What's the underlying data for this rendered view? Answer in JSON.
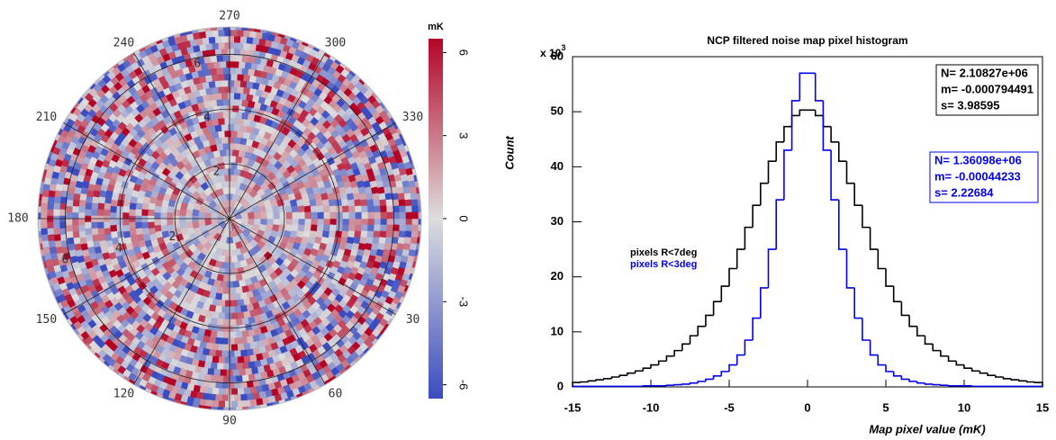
{
  "chart_data": [
    {
      "type": "polar_heatmap",
      "angle_ticks": [
        270,
        300,
        330,
        30,
        60,
        90,
        120,
        150,
        180,
        210,
        240
      ],
      "rlim": [
        0,
        7
      ],
      "rticks": [
        2,
        4,
        6
      ],
      "colorbar_label": "mK",
      "clim": [
        -6.5,
        6.5
      ],
      "cticks": [
        -6,
        -3,
        0,
        3,
        6
      ],
      "colormap": [
        "#3b4cc0",
        "#dddddd",
        "#b40426"
      ]
    },
    {
      "type": "histogram",
      "title": "NCP filtered noise map pixel histogram",
      "x_label": "Map pixel value (mK)",
      "y_label": "Count",
      "y_multiplier": {
        "base": "x 10",
        "exponent": "3"
      },
      "xlim": [
        -15,
        15
      ],
      "xticks": [
        -15,
        -10,
        -5,
        0,
        5,
        10,
        15
      ],
      "ylim": [
        0,
        60
      ],
      "yticks": [
        0,
        10,
        20,
        30,
        40,
        50,
        60
      ],
      "bins": [
        -15,
        -14.5,
        -14,
        -13.5,
        -13,
        -12.5,
        -12,
        -11.5,
        -11,
        -10.5,
        -10,
        -9.5,
        -9,
        -8.5,
        -8,
        -7.5,
        -7,
        -6.5,
        -6,
        -5.5,
        -5,
        -4.5,
        -4,
        -3.5,
        -3,
        -2.5,
        -2,
        -1.5,
        -1,
        -0.5,
        0,
        0.5,
        1,
        1.5,
        2,
        2.5,
        3,
        3.5,
        4,
        4.5,
        5,
        5.5,
        6,
        6.5,
        7,
        7.5,
        8,
        8.5,
        9,
        9.5,
        10,
        10.5,
        11,
        11.5,
        12,
        12.5,
        13,
        13.5,
        14,
        14.5,
        15
      ],
      "series": [
        {
          "name": "pixels R<7deg",
          "color": "#000000",
          "values": [
            0.8,
            0.9,
            1.1,
            1.3,
            1.5,
            1.8,
            2.1,
            2.5,
            2.9,
            3.4,
            4,
            4.7,
            5.6,
            6.6,
            7.8,
            9.3,
            11,
            13,
            15.5,
            18.3,
            21.5,
            25,
            29,
            33,
            37,
            41,
            44.5,
            47.3,
            49.3,
            50.3,
            50.3,
            49.3,
            47.3,
            44.5,
            41,
            37,
            33,
            29,
            25,
            21.5,
            18.3,
            15.5,
            13,
            11,
            9.3,
            7.8,
            6.6,
            5.6,
            4.7,
            4,
            3.4,
            2.9,
            2.5,
            2.1,
            1.8,
            1.5,
            1.3,
            1.1,
            0.9,
            0.8
          ],
          "stats": [
            "N= 2.10827e+06",
            "m= -0.000794491",
            "s= 3.98595"
          ]
        },
        {
          "name": "pixels R<3deg",
          "color": "#0000ee",
          "values": [
            0.1,
            0.1,
            0.1,
            0.1,
            0.1,
            0.1,
            0.1,
            0.1,
            0.1,
            0.2,
            0.2,
            0.2,
            0.3,
            0.4,
            0.5,
            0.7,
            1,
            1.4,
            2,
            2.8,
            4,
            5.8,
            8.5,
            12.5,
            18,
            25,
            34,
            43,
            52,
            57,
            57,
            52,
            43,
            34,
            25,
            18,
            12.5,
            8.5,
            5.8,
            4,
            2.8,
            2,
            1.4,
            1,
            0.7,
            0.5,
            0.4,
            0.3,
            0.2,
            0.2,
            0.2,
            0.1,
            0.1,
            0.1,
            0.1,
            0.1,
            0.1,
            0.1,
            0.1,
            0.1
          ],
          "stats": [
            "N= 1.36098e+06",
            "m= -0.00044233",
            "s= 2.22684"
          ]
        }
      ]
    }
  ]
}
